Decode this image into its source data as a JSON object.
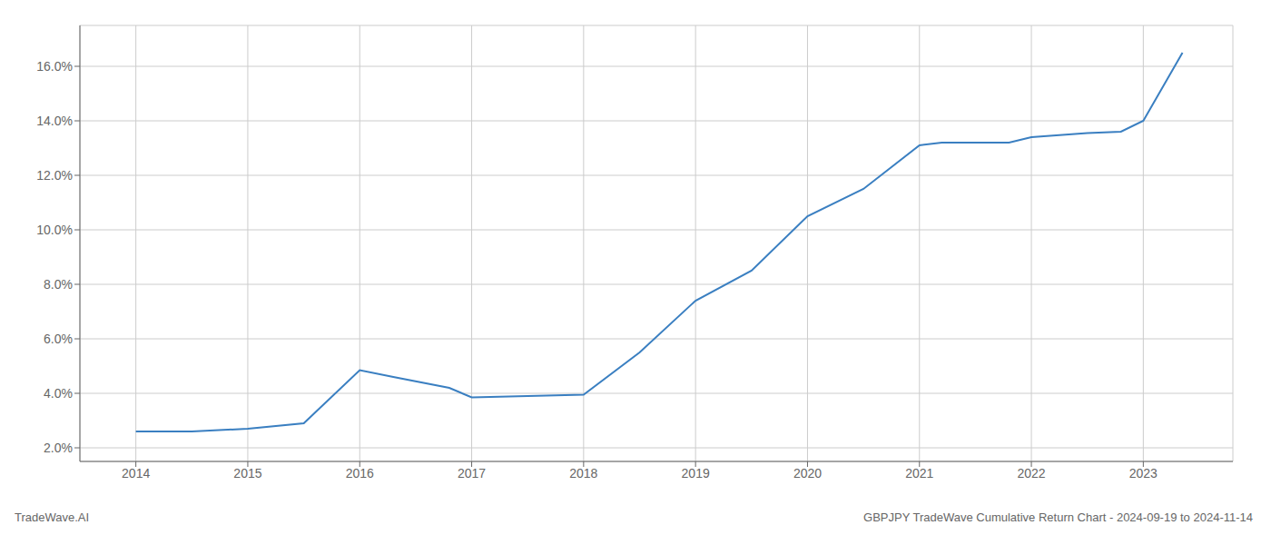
{
  "chart_data": {
    "type": "line",
    "x": [
      2014,
      2014.5,
      2015,
      2015.5,
      2016,
      2016.3,
      2016.8,
      2017,
      2017.5,
      2018,
      2018.5,
      2019,
      2019.5,
      2020,
      2020.5,
      2021,
      2021.2,
      2021.8,
      2022,
      2022.5,
      2022.8,
      2023,
      2023.35
    ],
    "values": [
      2.6,
      2.6,
      2.7,
      2.9,
      4.85,
      4.6,
      4.2,
      3.85,
      3.9,
      3.95,
      5.5,
      7.4,
      8.5,
      10.5,
      11.5,
      13.1,
      13.2,
      13.2,
      13.4,
      13.55,
      13.6,
      14.0,
      16.5
    ],
    "color": "#3a7fc1",
    "xlim": [
      2013.5,
      2023.8
    ],
    "ylim": [
      1.5,
      17.5
    ],
    "xticks": [
      2014,
      2015,
      2016,
      2017,
      2018,
      2019,
      2020,
      2021,
      2022,
      2023
    ],
    "yticks": [
      {
        "value": 2.0,
        "label": "2.0%"
      },
      {
        "value": 4.0,
        "label": "4.0%"
      },
      {
        "value": 6.0,
        "label": "6.0%"
      },
      {
        "value": 8.0,
        "label": "8.0%"
      },
      {
        "value": 10.0,
        "label": "10.0%"
      },
      {
        "value": 12.0,
        "label": "12.0%"
      },
      {
        "value": 14.0,
        "label": "14.0%"
      },
      {
        "value": 16.0,
        "label": "16.0%"
      }
    ],
    "grid": true,
    "annotations": [
      "TradeWave.AI",
      "GBPJPY TradeWave Cumulative Return Chart - 2024-09-19 to 2024-11-14"
    ]
  }
}
